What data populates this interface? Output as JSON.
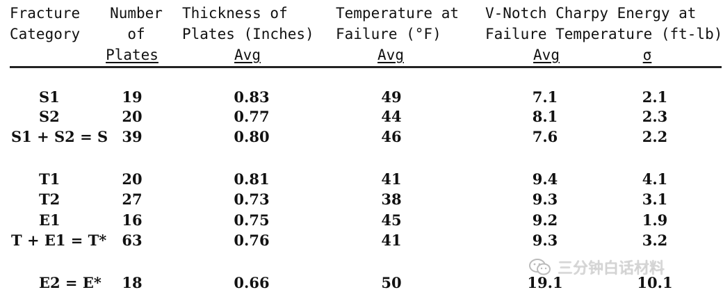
{
  "header": {
    "col1": [
      "Fracture",
      "Category"
    ],
    "col2": [
      "Number",
      "of",
      "Plates"
    ],
    "col3": [
      "Thickness of",
      "Plates (Inches)",
      "Avg"
    ],
    "col4": [
      "Temperature at",
      "Failure (°F)",
      "Avg"
    ],
    "col5": [
      "V-Notch Charpy Energy at",
      "Failure Temperature (ft-lb)"
    ],
    "col5_avg": "Avg",
    "col5_sigma": "σ"
  },
  "rows": [
    {
      "category": "S1",
      "plates": "19",
      "thickness": "0.83",
      "temp": "49",
      "energy": "7.1",
      "sigma": "2.1"
    },
    {
      "category": "S2",
      "plates": "20",
      "thickness": "0.77",
      "temp": "44",
      "energy": "8.1",
      "sigma": "2.3"
    },
    {
      "category": "S1 + S2 = S",
      "plates": "39",
      "thickness": "0.80",
      "temp": "46",
      "energy": "7.6",
      "sigma": "2.2"
    },
    {
      "category": "T1",
      "plates": "20",
      "thickness": "0.81",
      "temp": "41",
      "energy": "9.4",
      "sigma": "4.1"
    },
    {
      "category": "T2",
      "plates": "27",
      "thickness": "0.73",
      "temp": "38",
      "energy": "9.3",
      "sigma": "3.1"
    },
    {
      "category": "E1",
      "plates": "16",
      "thickness": "0.75",
      "temp": "45",
      "energy": "9.2",
      "sigma": "1.9"
    },
    {
      "category": "T + E1 = T*",
      "plates": "63",
      "thickness": "0.76",
      "temp": "41",
      "energy": "9.3",
      "sigma": "3.2"
    },
    {
      "category": "E2 = E*",
      "plates": "18",
      "thickness": "0.66",
      "temp": "50",
      "energy": "19.1",
      "sigma": "10.1"
    }
  ],
  "watermark": {
    "text": "三分钟白话材料",
    "icon": "wechat-icon"
  }
}
